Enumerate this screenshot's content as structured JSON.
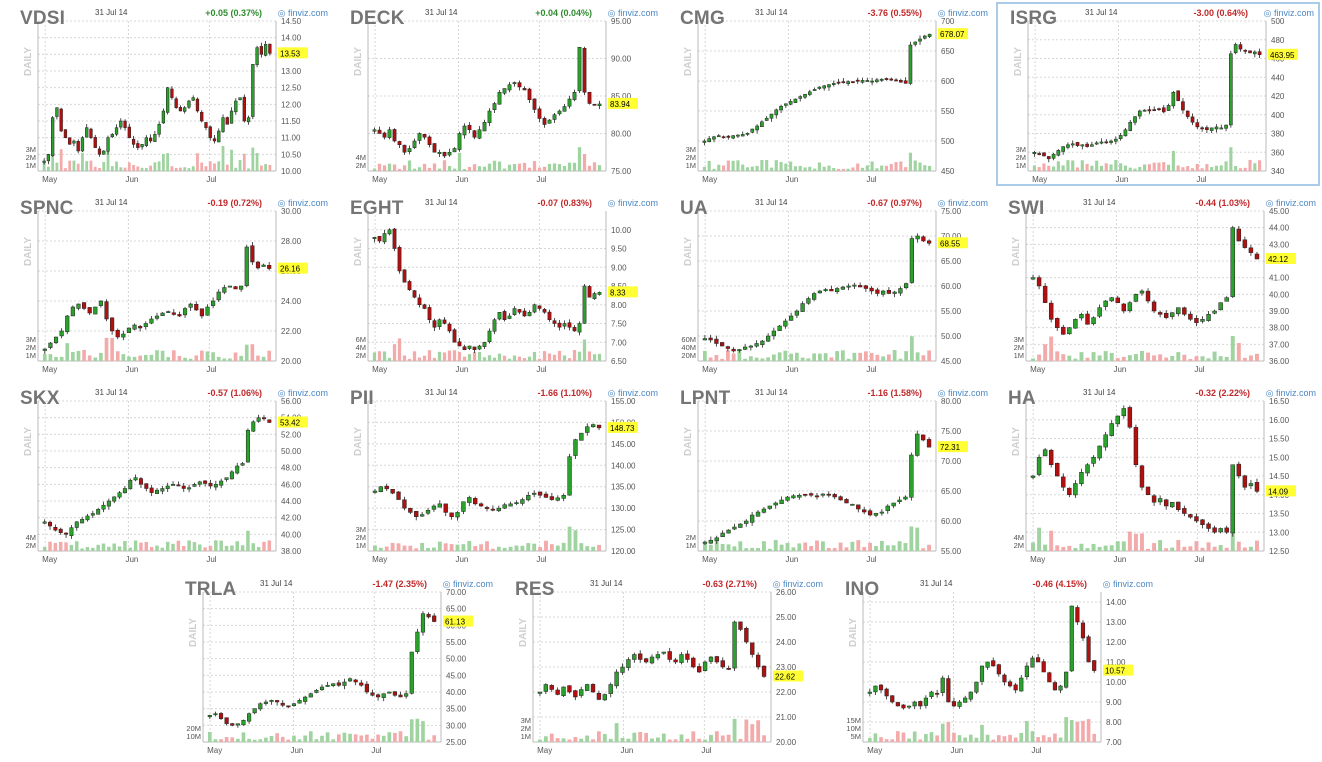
{
  "site": "finviz.com",
  "period_label": "DAILY",
  "date": "31 Jul 14",
  "colors": {
    "up": "#2ca02c",
    "down": "#b01010",
    "vol_up": "#9fd39f",
    "vol_down": "#f3aaaa",
    "last": "#ffff33"
  },
  "chart_data": [
    {
      "type": "candlestick",
      "ticker": "VDSI",
      "date": "31 Jul 14",
      "change": "+0.05 (0.37%)",
      "direction": "up",
      "last": 13.53,
      "last_label": "13.53",
      "ylim": [
        10.0,
        14.5
      ],
      "y_ticks": [
        "14.50",
        "14.00",
        "13.50",
        "13.00",
        "12.50",
        "12.00",
        "11.50",
        "11.00",
        "10.50",
        "10.00"
      ],
      "vol_ticks": [
        "3M",
        "2M",
        "1M"
      ],
      "x_ticks": [
        "May",
        "Jun",
        "Jul"
      ],
      "close": [
        10.3,
        10.5,
        11.6,
        11.9,
        11.2,
        11.0,
        10.8,
        10.9,
        10.6,
        11.0,
        11.3,
        11.0,
        10.7,
        10.5,
        10.6,
        11.0,
        11.1,
        11.3,
        11.5,
        11.3,
        11.0,
        10.8,
        10.7,
        10.8,
        11.0,
        10.9,
        11.1,
        11.4,
        11.8,
        12.5,
        12.2,
        11.9,
        11.8,
        11.9,
        12.1,
        12.2,
        11.8,
        11.5,
        11.3,
        11.0,
        10.9,
        11.2,
        11.6,
        11.4,
        11.8,
        12.1,
        12.2,
        11.5,
        11.6,
        13.2,
        13.7,
        13.5,
        13.8,
        13.53
      ]
    },
    {
      "type": "candlestick",
      "ticker": "DECK",
      "date": "31 Jul 14",
      "change": "+0.04 (0.04%)",
      "direction": "up",
      "last": 83.94,
      "last_label": "83.94",
      "ylim": [
        75,
        95
      ],
      "y_ticks": [
        "95.00",
        "90.00",
        "85.00",
        "80.00",
        "75.00"
      ],
      "vol_ticks": [
        "4M",
        "2M"
      ],
      "x_ticks": [
        "May",
        "Jun",
        "Jul"
      ],
      "close": [
        80.5,
        80.0,
        79.5,
        80.5,
        79.0,
        78.5,
        77.5,
        78.0,
        79.0,
        80.0,
        79.5,
        78.5,
        77.5,
        77.5,
        77.0,
        77.5,
        78.0,
        80.0,
        81.0,
        80.5,
        79.5,
        80.5,
        81.5,
        83.0,
        84.0,
        85.5,
        86.0,
        86.5,
        86.8,
        86.2,
        85.8,
        84.5,
        83.2,
        82.0,
        81.2,
        81.8,
        82.5,
        83.0,
        83.6,
        84.6,
        85.5,
        91.5,
        85.5,
        84.0,
        83.9,
        83.94
      ]
    },
    {
      "type": "candlestick",
      "ticker": "CMG",
      "date": "31 Jul 14",
      "change": "-3.76 (0.55%)",
      "direction": "down",
      "last": 678.07,
      "last_label": "678.07",
      "ylim": [
        450,
        700
      ],
      "y_ticks": [
        "700",
        "650",
        "600",
        "550",
        "500",
        "450"
      ],
      "vol_ticks": [
        "3M",
        "2M",
        "1M"
      ],
      "x_ticks": [
        "May",
        "Jun",
        "Jul"
      ],
      "close": [
        500,
        504,
        507,
        509,
        507,
        506,
        509,
        510,
        511,
        513,
        520,
        525,
        532,
        538,
        545,
        552,
        558,
        562,
        566,
        570,
        574,
        578,
        582,
        586,
        590,
        592,
        594,
        596,
        597,
        598,
        599,
        599,
        600,
        601,
        601,
        600,
        602,
        603,
        604,
        603,
        600,
        598,
        596,
        660,
        665,
        670,
        675,
        678.07
      ]
    },
    {
      "type": "candlestick",
      "ticker": "ISRG",
      "date": "31 Jul 14",
      "change": "-3.00 (0.64%)",
      "direction": "down",
      "highlighted": true,
      "last": 463.95,
      "last_label": "463.95",
      "ylim": [
        340,
        500
      ],
      "y_ticks": [
        "500",
        "480",
        "460",
        "440",
        "420",
        "400",
        "380",
        "360",
        "340"
      ],
      "vol_ticks": [
        "3M",
        "2M",
        "1M"
      ],
      "x_ticks": [
        "May",
        "Jun",
        "Jul"
      ],
      "close": [
        360,
        358,
        356,
        353,
        358,
        362,
        366,
        368,
        369,
        367,
        368,
        366,
        368,
        370,
        371,
        371,
        372,
        374,
        378,
        384,
        392,
        398,
        404,
        405,
        404,
        405,
        406,
        403,
        410,
        424,
        415,
        405,
        398,
        392,
        387,
        385,
        384,
        386,
        387,
        386,
        389,
        465,
        475,
        470,
        468,
        466,
        467,
        463.95
      ]
    },
    {
      "type": "candlestick",
      "ticker": "SPNC",
      "date": "31 Jul 14",
      "change": "-0.19 (0.72%)",
      "direction": "down",
      "last": 26.16,
      "last_label": "26.16",
      "ylim": [
        20,
        30
      ],
      "y_ticks": [
        "30.00",
        "28.00",
        "26.00",
        "24.00",
        "22.00",
        "20.00"
      ],
      "vol_ticks": [
        "3M",
        "2M",
        "1M"
      ],
      "x_ticks": [
        "May",
        "Jun",
        "Jul"
      ],
      "close": [
        20.8,
        21.2,
        21.6,
        22.0,
        23.0,
        23.6,
        23.8,
        23.5,
        23.2,
        23.6,
        24.0,
        22.8,
        22.0,
        21.6,
        21.8,
        22.2,
        22.4,
        22.2,
        22.5,
        22.8,
        23.0,
        23.2,
        23.3,
        23.1,
        23.0,
        23.5,
        23.8,
        23.4,
        23.0,
        23.6,
        24.0,
        24.6,
        24.9,
        25.0,
        24.8,
        25.0,
        27.6,
        26.6,
        26.2,
        26.4,
        26.16
      ]
    },
    {
      "type": "candlestick",
      "ticker": "EGHT",
      "date": "31 Jul 14",
      "change": "-0.07 (0.83%)",
      "direction": "down",
      "last": 8.33,
      "last_label": "8.33",
      "ylim": [
        6.5,
        10.5
      ],
      "y_ticks": [
        "10.00",
        "9.50",
        "9.00",
        "8.50",
        "8.00",
        "7.50",
        "7.00",
        "6.50"
      ],
      "vol_ticks": [
        "6M",
        "4M",
        "2M"
      ],
      "x_ticks": [
        "May",
        "Jun",
        "Jul"
      ],
      "close": [
        9.8,
        9.7,
        9.9,
        10.0,
        9.5,
        8.9,
        8.6,
        8.4,
        8.2,
        8.0,
        7.9,
        7.6,
        7.4,
        7.6,
        7.5,
        7.3,
        7.0,
        6.9,
        6.8,
        6.9,
        6.8,
        6.9,
        7.0,
        7.3,
        7.6,
        7.8,
        7.6,
        7.7,
        7.9,
        7.8,
        7.7,
        7.8,
        8.0,
        7.9,
        7.8,
        7.6,
        7.5,
        7.4,
        7.5,
        7.4,
        7.3,
        7.5,
        8.5,
        8.2,
        8.3,
        8.33
      ]
    },
    {
      "type": "candlestick",
      "ticker": "UA",
      "date": "31 Jul 14",
      "change": "-0.67 (0.97%)",
      "direction": "down",
      "last": 68.55,
      "last_label": "68.55",
      "ylim": [
        45,
        75
      ],
      "y_ticks": [
        "75.00",
        "70.00",
        "65.00",
        "60.00",
        "55.00",
        "50.00",
        "45.00"
      ],
      "vol_ticks": [
        "60M",
        "40M",
        "20M"
      ],
      "x_ticks": [
        "May",
        "Jun",
        "Jul"
      ],
      "close": [
        49.5,
        49.2,
        48.5,
        48.0,
        47.5,
        47.0,
        47.3,
        47.8,
        48.0,
        48.5,
        49.0,
        50.0,
        51.0,
        52.0,
        53.0,
        54.0,
        55.0,
        56.5,
        57.5,
        58.5,
        59.0,
        59.3,
        59.0,
        59.5,
        59.8,
        60.0,
        60.2,
        59.8,
        59.5,
        59.0,
        58.5,
        59.0,
        58.5,
        58.8,
        59.5,
        60.5,
        69.5,
        70.0,
        69.0,
        68.55
      ]
    },
    {
      "type": "candlestick",
      "ticker": "SWI",
      "date": "31 Jul 14",
      "change": "-0.44 (1.03%)",
      "direction": "down",
      "last": 42.12,
      "last_label": "42.12",
      "ylim": [
        36,
        45
      ],
      "y_ticks": [
        "45.00",
        "44.00",
        "43.00",
        "42.00",
        "41.00",
        "40.00",
        "39.00",
        "38.00",
        "37.00",
        "36.00"
      ],
      "vol_ticks": [
        "3M",
        "2M",
        "1M"
      ],
      "x_ticks": [
        "May",
        "Jun",
        "Jul"
      ],
      "close": [
        41.0,
        40.5,
        39.5,
        38.5,
        38.0,
        37.6,
        38.0,
        38.5,
        38.8,
        38.2,
        38.6,
        39.2,
        39.6,
        39.8,
        39.5,
        39.0,
        39.5,
        40.0,
        40.2,
        39.6,
        39.0,
        38.8,
        38.6,
        38.9,
        39.2,
        38.8,
        38.5,
        38.3,
        38.5,
        38.8,
        39.0,
        39.5,
        39.8,
        44.0,
        43.2,
        42.8,
        42.5,
        42.12
      ]
    },
    {
      "type": "candlestick",
      "ticker": "SKX",
      "date": "31 Jul 14",
      "change": "-0.57 (1.06%)",
      "direction": "down",
      "last": 53.42,
      "last_label": "53.42",
      "ylim": [
        38,
        56
      ],
      "y_ticks": [
        "56.00",
        "54.00",
        "52.00",
        "50.00",
        "48.00",
        "46.00",
        "44.00",
        "42.00",
        "40.00",
        "38.00"
      ],
      "vol_ticks": [
        "4M",
        "2M"
      ],
      "x_ticks": [
        "May",
        "Jun",
        "Jul"
      ],
      "close": [
        41.5,
        41.0,
        40.5,
        40.2,
        40.0,
        40.8,
        41.5,
        41.8,
        42.2,
        42.5,
        43.0,
        43.5,
        44.0,
        44.5,
        45.0,
        45.5,
        46.5,
        46.8,
        46.0,
        45.5,
        45.0,
        45.3,
        45.5,
        45.8,
        46.0,
        45.8,
        45.5,
        45.6,
        46.0,
        46.3,
        46.1,
        45.8,
        46.0,
        46.4,
        46.8,
        47.5,
        48.2,
        48.5,
        52.5,
        53.5,
        54.0,
        53.9,
        53.42
      ]
    },
    {
      "type": "candlestick",
      "ticker": "PII",
      "date": "31 Jul 14",
      "change": "-1.66 (1.10%)",
      "direction": "down",
      "last": 148.73,
      "last_label": "148.73",
      "ylim": [
        120,
        155
      ],
      "y_ticks": [
        "155.00",
        "150.00",
        "145.00",
        "140.00",
        "135.00",
        "130.00",
        "125.00",
        "120.00"
      ],
      "vol_ticks": [
        "3M",
        "2M",
        "1M"
      ],
      "x_ticks": [
        "May",
        "Jun",
        "Jul"
      ],
      "close": [
        134.0,
        135.0,
        134.5,
        133.5,
        132.0,
        130.0,
        129.0,
        128.0,
        128.5,
        129.5,
        130.5,
        131.0,
        129.0,
        128.0,
        129.0,
        131.5,
        132.5,
        131.0,
        130.5,
        130.0,
        129.5,
        130.0,
        130.8,
        131.0,
        131.3,
        132.0,
        133.0,
        133.5,
        133.0,
        132.5,
        132.0,
        132.4,
        133.0,
        142.0,
        146.0,
        147.5,
        149.0,
        149.5,
        148.73
      ]
    },
    {
      "type": "candlestick",
      "ticker": "LPNT",
      "date": "31 Jul 14",
      "change": "-1.16 (1.58%)",
      "direction": "down",
      "last": 72.31,
      "last_label": "72.31",
      "ylim": [
        55,
        80
      ],
      "y_ticks": [
        "80.00",
        "75.00",
        "70.00",
        "65.00",
        "60.00",
        "55.00"
      ],
      "vol_ticks": [
        "2M",
        "1M"
      ],
      "x_ticks": [
        "May",
        "Jun",
        "Jul"
      ],
      "close": [
        56.5,
        56.8,
        57.2,
        58.0,
        58.5,
        59.0,
        59.5,
        60.0,
        61.0,
        61.5,
        62.0,
        62.5,
        63.0,
        63.5,
        64.0,
        64.2,
        64.3,
        64.4,
        64.3,
        64.2,
        64.5,
        64.3,
        64.0,
        63.5,
        63.0,
        62.8,
        62.0,
        61.5,
        61.0,
        61.3,
        61.5,
        62.5,
        63.0,
        63.5,
        64.0,
        71.0,
        74.5,
        73.5,
        72.31
      ]
    },
    {
      "type": "candlestick",
      "ticker": "HA",
      "date": "31 Jul 14",
      "change": "-0.32 (2.22%)",
      "direction": "down",
      "last": 14.09,
      "last_label": "14.09",
      "ylim": [
        12.5,
        16.5
      ],
      "y_ticks": [
        "16.50",
        "16.00",
        "15.50",
        "15.00",
        "14.50",
        "14.00",
        "13.50",
        "13.00",
        "12.50"
      ],
      "vol_ticks": [
        "4M",
        "2M"
      ],
      "x_ticks": [
        "May",
        "Jun",
        "Jul"
      ],
      "close": [
        14.5,
        15.0,
        15.2,
        14.8,
        14.5,
        14.2,
        14.0,
        14.3,
        14.6,
        14.8,
        15.0,
        15.3,
        15.6,
        15.9,
        16.1,
        16.3,
        15.8,
        14.8,
        14.2,
        14.0,
        13.8,
        13.9,
        13.7,
        13.8,
        13.6,
        13.5,
        13.4,
        13.3,
        13.2,
        13.1,
        13.0,
        13.1,
        13.0,
        14.8,
        14.5,
        14.2,
        14.3,
        14.09
      ]
    },
    {
      "type": "candlestick",
      "ticker": "TRLA",
      "date": "31 Jul 14",
      "change": "-1.47 (2.35%)",
      "direction": "down",
      "last": 61.13,
      "last_label": "61.13",
      "ylim": [
        25,
        70
      ],
      "y_ticks": [
        "70.00",
        "65.00",
        "60.00",
        "55.00",
        "50.00",
        "45.00",
        "40.00",
        "35.00",
        "30.00",
        "25.00"
      ],
      "vol_ticks": [
        "20M",
        "10M"
      ],
      "x_ticks": [
        "May",
        "Jun",
        "Jul"
      ],
      "close": [
        33.0,
        33.5,
        32.0,
        30.5,
        30.0,
        30.5,
        31.5,
        33.5,
        35.0,
        36.5,
        37.0,
        37.5,
        37.0,
        36.0,
        35.5,
        36.5,
        37.5,
        38.5,
        39.5,
        40.5,
        41.5,
        42.0,
        42.5,
        42.0,
        43.0,
        44.0,
        43.0,
        42.0,
        40.0,
        39.0,
        38.5,
        39.5,
        40.0,
        39.0,
        38.5,
        39.5,
        52.0,
        58.0,
        63.5,
        62.5,
        61.13
      ]
    },
    {
      "type": "candlestick",
      "ticker": "RES",
      "date": "31 Jul 14",
      "change": "-0.63 (2.71%)",
      "direction": "down",
      "last": 22.62,
      "last_label": "22.62",
      "ylim": [
        20,
        26
      ],
      "y_ticks": [
        "26.00",
        "25.00",
        "24.00",
        "23.00",
        "22.00",
        "21.00",
        "20.00"
      ],
      "vol_ticks": [
        "3M",
        "2M",
        "1M"
      ],
      "x_ticks": [
        "May",
        "Jun",
        "Jul"
      ],
      "close": [
        22.0,
        22.3,
        22.1,
        21.9,
        22.2,
        22.0,
        21.8,
        22.1,
        22.3,
        22.0,
        21.7,
        21.9,
        22.3,
        22.8,
        23.0,
        23.3,
        23.5,
        23.3,
        23.2,
        23.4,
        23.5,
        23.6,
        23.3,
        23.2,
        23.5,
        23.3,
        23.0,
        22.8,
        23.2,
        23.4,
        23.2,
        23.0,
        22.9,
        24.8,
        24.5,
        24.0,
        23.5,
        23.0,
        22.62
      ]
    },
    {
      "type": "candlestick",
      "ticker": "INO",
      "date": "31 Jul 14",
      "change": "-0.46 (4.15%)",
      "direction": "down",
      "last": 10.57,
      "last_label": "10.57",
      "ylim": [
        7,
        14.5
      ],
      "y_ticks": [
        "14.00",
        "13.00",
        "12.00",
        "11.00",
        "10.00",
        "9.00",
        "8.00",
        "7.00"
      ],
      "vol_ticks": [
        "15M",
        "10M",
        "5M"
      ],
      "x_ticks": [
        "May",
        "Jun",
        "Jul"
      ],
      "close": [
        9.5,
        9.8,
        9.6,
        9.3,
        9.0,
        8.8,
        8.7,
        8.8,
        9.0,
        8.8,
        9.2,
        9.5,
        9.4,
        10.2,
        9.0,
        8.8,
        9.0,
        9.2,
        9.5,
        10.0,
        10.8,
        11.0,
        10.8,
        10.4,
        10.0,
        9.8,
        9.6,
        10.2,
        10.8,
        11.2,
        11.0,
        10.5,
        10.0,
        9.6,
        9.8,
        10.5,
        13.8,
        13.0,
        12.2,
        11.0,
        10.57
      ]
    }
  ]
}
